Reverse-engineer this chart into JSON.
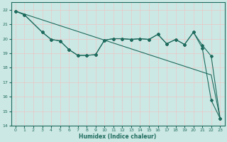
{
  "xlabel": "Humidex (Indice chaleur)",
  "bg_color": "#cce8e4",
  "grid_color": "#e8c8c8",
  "line_color": "#1e6b5e",
  "xlim": [
    -0.5,
    23.5
  ],
  "ylim": [
    14,
    22.5
  ],
  "yticks": [
    14,
    15,
    16,
    17,
    18,
    19,
    20,
    21,
    22
  ],
  "xticks": [
    0,
    1,
    2,
    3,
    4,
    5,
    6,
    7,
    8,
    9,
    10,
    11,
    12,
    13,
    14,
    15,
    16,
    17,
    18,
    19,
    20,
    21,
    22,
    23
  ],
  "line1_x": [
    0,
    1,
    2,
    3,
    4,
    5,
    6,
    7,
    8,
    9,
    10,
    11,
    12,
    13,
    14,
    15,
    16,
    17,
    18,
    19,
    20,
    21,
    22,
    23
  ],
  "line1_y": [
    21.9,
    21.7,
    21.5,
    21.3,
    21.1,
    20.9,
    20.7,
    20.5,
    20.3,
    20.1,
    19.9,
    19.7,
    19.5,
    19.3,
    19.1,
    18.9,
    18.7,
    18.5,
    18.3,
    18.1,
    17.9,
    17.7,
    17.5,
    14.5
  ],
  "line2_x": [
    0,
    1,
    3,
    4,
    5,
    6,
    7,
    8,
    9,
    10,
    11,
    12,
    13,
    14,
    15,
    16,
    17,
    18,
    19,
    20,
    21,
    22,
    23
  ],
  "line2_y": [
    21.9,
    21.65,
    20.45,
    19.95,
    19.85,
    19.25,
    18.85,
    18.85,
    18.9,
    19.9,
    20.0,
    20.0,
    19.95,
    20.0,
    19.95,
    20.3,
    19.65,
    19.95,
    19.6,
    20.45,
    19.55,
    18.8,
    14.5
  ],
  "line3_x": [
    0,
    1,
    3,
    4,
    5,
    6,
    7,
    8,
    9,
    10,
    11,
    12,
    13,
    14,
    15,
    16,
    17,
    18,
    19,
    20,
    21,
    22,
    23
  ],
  "line3_y": [
    21.9,
    21.65,
    20.45,
    19.95,
    19.85,
    19.25,
    18.85,
    18.85,
    18.9,
    19.9,
    20.0,
    20.0,
    19.95,
    20.0,
    19.95,
    20.3,
    19.65,
    19.95,
    19.6,
    20.45,
    19.35,
    15.75,
    14.5
  ],
  "marker": "D",
  "markersize": 2.0,
  "linewidth": 0.8
}
